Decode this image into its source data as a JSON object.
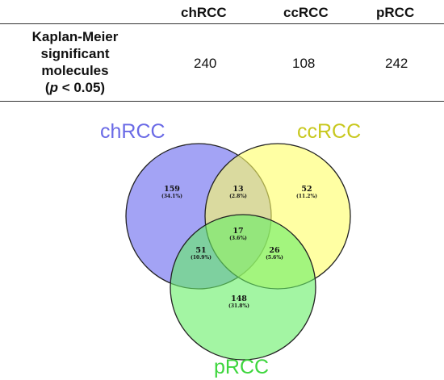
{
  "table": {
    "columns": [
      "chRCC",
      "ccRCC",
      "pRCC"
    ],
    "row_label_lines": [
      "Kaplan-Meier",
      "significant",
      "molecules"
    ],
    "row_label_p": "p",
    "row_label_p_rest": " < 0.05)",
    "row_label_p_open": "(",
    "values": [
      "240",
      "108",
      "242"
    ]
  },
  "venn": {
    "sets": [
      {
        "label": "chRCC",
        "color": "#6666ee"
      },
      {
        "label": "ccRCC",
        "color": "#ffff66"
      },
      {
        "label": "pRCC",
        "color": "#66ee66"
      }
    ],
    "label_colors": {
      "chRCC": "#6a6ae6",
      "ccRCC": "#c8c81e",
      "pRCC": "#3ed63e"
    },
    "regions": [
      {
        "id": "chRCC-only",
        "count": "159",
        "pct": "(34.1%)"
      },
      {
        "id": "chRCC-ccRCC",
        "count": "13",
        "pct": "(2.8%)"
      },
      {
        "id": "ccRCC-only",
        "count": "52",
        "pct": "(11.2%)"
      },
      {
        "id": "all-three",
        "count": "17",
        "pct": "(3.6%)"
      },
      {
        "id": "chRCC-pRCC",
        "count": "51",
        "pct": "(10.9%)"
      },
      {
        "id": "ccRCC-pRCC",
        "count": "26",
        "pct": "(5.6%)"
      },
      {
        "id": "pRCC-only",
        "count": "148",
        "pct": "(31.8%)"
      }
    ]
  }
}
